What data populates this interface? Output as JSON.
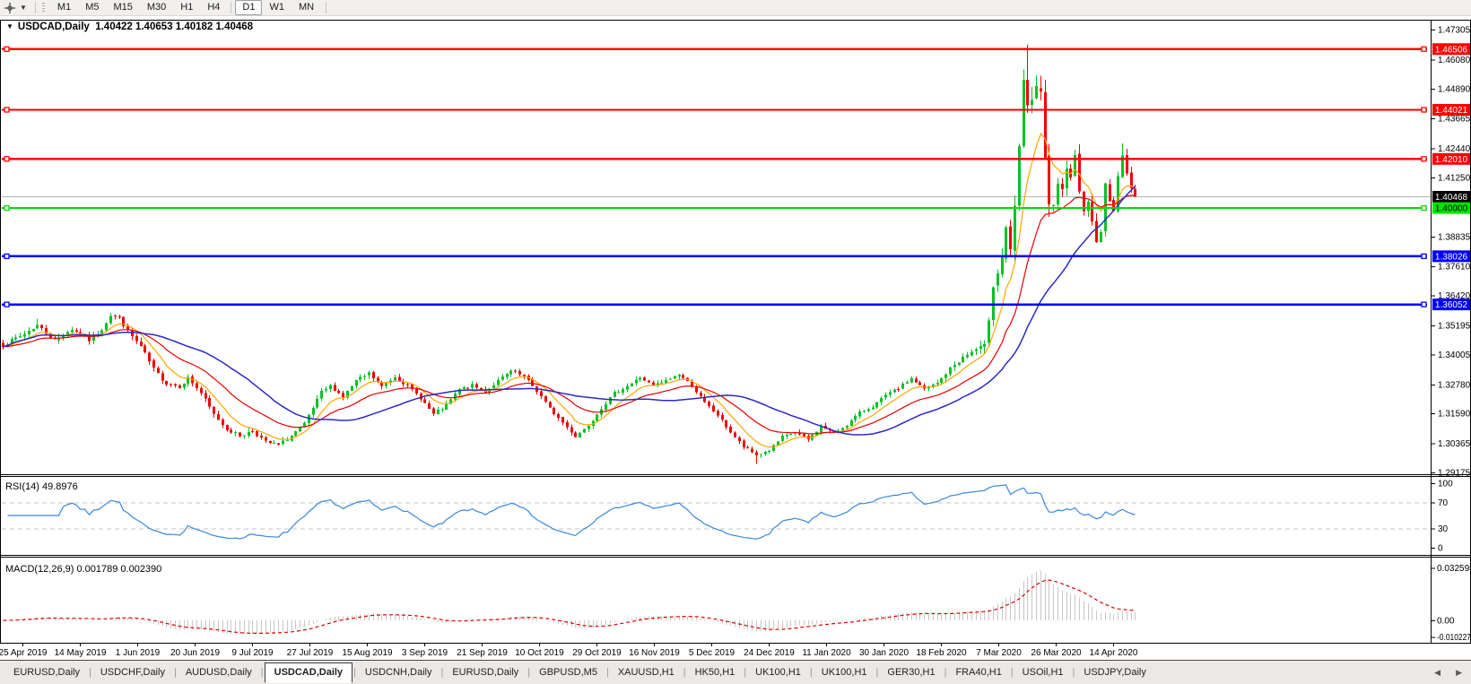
{
  "toolbar": {
    "tool_icon": "crosshair-icon",
    "dropdown_caret": "▼",
    "timeframes": [
      "M1",
      "M5",
      "M15",
      "M30",
      "H1",
      "H4",
      "D1",
      "W1",
      "MN"
    ],
    "active_timeframe": "D1"
  },
  "chart": {
    "collapse_glyph": "▼",
    "title_symbol": "USDCAD,Daily",
    "title_ohlc": "1.40422 1.40653 1.40182 1.40468",
    "ohlc": {
      "open": "1.40422",
      "high": "1.40653",
      "low": "1.40182",
      "close": "1.40468"
    },
    "y_ticks": [
      "1.47305",
      "1.46080",
      "1.44890",
      "1.43665",
      "1.42440",
      "1.41250",
      "1.38835",
      "1.37610",
      "1.36420",
      "1.35195",
      "1.34005",
      "1.32780",
      "1.31590",
      "1.30365",
      "1.29175"
    ],
    "hlines": [
      {
        "price": 1.46506,
        "label": "1.46506",
        "role": "resistance",
        "color": "#FE0000",
        "box": "#FE0000",
        "label_text": "#FFFFFF"
      },
      {
        "price": 1.44021,
        "label": "1.44021",
        "role": "resistance",
        "color": "#FE0000",
        "box": "#FE0000",
        "label_text": "#FFFFFF"
      },
      {
        "price": 1.4201,
        "label": "1.42010",
        "role": "resistance",
        "color": "#FE0000",
        "box": "#FE0000",
        "label_text": "#FFFFFF"
      },
      {
        "price": 1.4,
        "label": "1.40000",
        "role": "round-level",
        "color": "#00DC00",
        "box": "#00E400",
        "label_text": "#000000"
      },
      {
        "price": 1.38026,
        "label": "1.38026",
        "role": "support",
        "color": "#0000FE",
        "box": "#0000FE",
        "label_text": "#FFFFFF"
      },
      {
        "price": 1.36052,
        "label": "1.36052",
        "role": "support",
        "color": "#0000FE",
        "box": "#0000FE",
        "label_text": "#FFFFFF"
      }
    ],
    "bid": {
      "price": 1.40468,
      "label": "1.40468",
      "line_color": "#B4B4B4",
      "box": "#000000",
      "label_text": "#FFFFFF"
    },
    "x_labels": [
      "25 Apr 2019",
      "14 May 2019",
      "1 Jun 2019",
      "20 Jun 2019",
      "9 Jul 2019",
      "27 Jul 2019",
      "15 Aug 2019",
      "3 Sep 2019",
      "21 Sep 2019",
      "10 Oct 2019",
      "29 Oct 2019",
      "16 Nov 2019",
      "5 Dec 2019",
      "24 Dec 2019",
      "11 Jan 2020",
      "30 Jan 2020",
      "18 Feb 2020",
      "7 Mar 2020",
      "26 Mar 2020",
      "14 Apr 2020"
    ]
  },
  "rsi": {
    "label": "RSI(14) 49.8976",
    "period": 14,
    "value": 49.8976,
    "levels": [
      "100",
      "70",
      "30",
      "0"
    ],
    "dashed_levels": [
      70,
      30
    ]
  },
  "macd": {
    "label": "MACD(12,26,9) 0.001789 0.002390",
    "params": "12,26,9",
    "macd_value": 0.001789,
    "signal_value": 0.00239,
    "ticks": [
      "0.032595",
      "0.00",
      "-0.010227"
    ]
  },
  "tabs": {
    "items": [
      "EURUSD,Daily",
      "USDCHF,Daily",
      "AUDUSD,Daily",
      "USDCAD,Daily",
      "USDCNH,Daily",
      "EURUSD,Daily",
      "GBPUSD,M5",
      "XAUUSD,H1",
      "HK50,H1",
      "UK100,H1",
      "UK100,H1",
      "GER30,H1",
      "FRA40,H1",
      "USOil,H1",
      "USDJPY,Daily"
    ],
    "active_index": 3,
    "scroll_left": "◀",
    "scroll_right": "▶"
  },
  "colors": {
    "bull": "#00C226",
    "bear": "#F20000",
    "ma_fast": "#FFA500",
    "ma_mid": "#E60000",
    "ma_slow": "#2B2BC4",
    "bid_line": "#B4B4B4",
    "rsi_line": "#3A87DB",
    "rsi_level": "#C4C4C4",
    "macd_hist": "#C6C6C6",
    "macd_signal": "#E00000"
  },
  "chart_data": {
    "type": "candlestick-ohlc",
    "symbol": "USDCAD",
    "timeframe": "Daily",
    "bar_count": 264,
    "x_range": [
      "25 Apr 2019",
      "24 Apr 2020"
    ],
    "y_range": [
      1.29175,
      1.47305
    ],
    "last_close": 1.40468,
    "current_bar": {
      "open": 1.40422,
      "high": 1.40653,
      "low": 1.40182,
      "close": 1.40468
    },
    "close_anchors": [
      [
        0,
        1.344
      ],
      [
        4,
        1.3475
      ],
      [
        8,
        1.352
      ],
      [
        12,
        1.3458
      ],
      [
        16,
        1.3505
      ],
      [
        20,
        1.346
      ],
      [
        23,
        1.3505
      ],
      [
        25,
        1.3562
      ],
      [
        27,
        1.3548
      ],
      [
        29,
        1.3495
      ],
      [
        32,
        1.3432
      ],
      [
        35,
        1.334
      ],
      [
        38,
        1.3282
      ],
      [
        41,
        1.327
      ],
      [
        43,
        1.3305
      ],
      [
        46,
        1.3242
      ],
      [
        49,
        1.3155
      ],
      [
        52,
        1.3095
      ],
      [
        55,
        1.3068
      ],
      [
        58,
        1.3088
      ],
      [
        61,
        1.3042
      ],
      [
        64,
        1.303
      ],
      [
        67,
        1.3068
      ],
      [
        70,
        1.3115
      ],
      [
        72,
        1.318
      ],
      [
        74,
        1.3245
      ],
      [
        76,
        1.3272
      ],
      [
        79,
        1.3228
      ],
      [
        82,
        1.3292
      ],
      [
        85,
        1.3322
      ],
      [
        88,
        1.3268
      ],
      [
        91,
        1.331
      ],
      [
        94,
        1.3272
      ],
      [
        97,
        1.3222
      ],
      [
        100,
        1.3155
      ],
      [
        103,
        1.3192
      ],
      [
        106,
        1.3258
      ],
      [
        109,
        1.3272
      ],
      [
        112,
        1.3248
      ],
      [
        115,
        1.3292
      ],
      [
        118,
        1.3332
      ],
      [
        121,
        1.331
      ],
      [
        124,
        1.3252
      ],
      [
        127,
        1.318
      ],
      [
        130,
        1.3122
      ],
      [
        133,
        1.3065
      ],
      [
        136,
        1.3112
      ],
      [
        139,
        1.3182
      ],
      [
        142,
        1.3242
      ],
      [
        145,
        1.3272
      ],
      [
        148,
        1.3306
      ],
      [
        151,
        1.3272
      ],
      [
        154,
        1.3292
      ],
      [
        157,
        1.332
      ],
      [
        160,
        1.3272
      ],
      [
        163,
        1.3202
      ],
      [
        166,
        1.3152
      ],
      [
        169,
        1.3082
      ],
      [
        172,
        1.3022
      ],
      [
        175,
        1.2988
      ],
      [
        178,
        1.3008
      ],
      [
        181,
        1.3062
      ],
      [
        184,
        1.3082
      ],
      [
        187,
        1.3052
      ],
      [
        190,
        1.3106
      ],
      [
        193,
        1.3078
      ],
      [
        196,
        1.3112
      ],
      [
        199,
        1.3162
      ],
      [
        202,
        1.3188
      ],
      [
        205,
        1.3232
      ],
      [
        208,
        1.3262
      ],
      [
        211,
        1.3302
      ],
      [
        214,
        1.3258
      ],
      [
        217,
        1.3282
      ],
      [
        220,
        1.3342
      ],
      [
        223,
        1.3388
      ],
      [
        226,
        1.342
      ],
      [
        228,
        1.3428
      ],
      [
        229,
        1.3552
      ],
      [
        230,
        1.3692
      ],
      [
        231,
        1.3742
      ],
      [
        232,
        1.3798
      ],
      [
        233,
        1.3926
      ],
      [
        234,
        1.3812
      ],
      [
        235,
        1.3992
      ],
      [
        236,
        1.4252
      ],
      [
        237,
        1.4502
      ],
      [
        238,
        1.4432
      ],
      [
        239,
        1.4442
      ],
      [
        240,
        1.4478
      ],
      [
        241,
        1.4468
      ],
      [
        242,
        1.4192
      ],
      [
        243,
        1.4022
      ],
      [
        244,
        1.3992
      ],
      [
        245,
        1.4078
      ],
      [
        246,
        1.4062
      ],
      [
        247,
        1.4182
      ],
      [
        248,
        1.4138
      ],
      [
        249,
        1.4208
      ],
      [
        250,
        1.4082
      ],
      [
        251,
        1.4002
      ],
      [
        252,
        1.4012
      ],
      [
        253,
        1.3952
      ],
      [
        254,
        1.3858
      ],
      [
        255,
        1.3908
      ],
      [
        256,
        1.4092
      ],
      [
        257,
        1.4022
      ],
      [
        258,
        1.4002
      ],
      [
        259,
        1.4132
      ],
      [
        260,
        1.4202
      ],
      [
        261,
        1.4152
      ],
      [
        262,
        1.4092
      ],
      [
        263,
        1.40468
      ]
    ],
    "volatility_anchors": [
      [
        0,
        0.0032
      ],
      [
        40,
        0.003
      ],
      [
        80,
        0.0026
      ],
      [
        140,
        0.0024
      ],
      [
        200,
        0.0022
      ],
      [
        224,
        0.003
      ],
      [
        229,
        0.0075
      ],
      [
        237,
        0.011
      ],
      [
        243,
        0.0095
      ],
      [
        250,
        0.007
      ],
      [
        263,
        0.0048
      ]
    ],
    "high_overrides": {
      "8": 1.3547,
      "237": 1.456,
      "238": 1.4668,
      "260": 1.4265
    },
    "low_overrides": {
      "175": 1.2952
    },
    "noise_seed": 7,
    "moving_averages": [
      {
        "name": "fast",
        "period": 8,
        "method": "ema",
        "color": "#FFA500"
      },
      {
        "name": "mid",
        "period": 21,
        "method": "ema",
        "color": "#E60000"
      },
      {
        "name": "slow",
        "period": 34,
        "method": "sma",
        "color": "#2B2BC4"
      }
    ],
    "indicators": [
      "RSI(14)",
      "MACD(12,26,9)"
    ]
  }
}
